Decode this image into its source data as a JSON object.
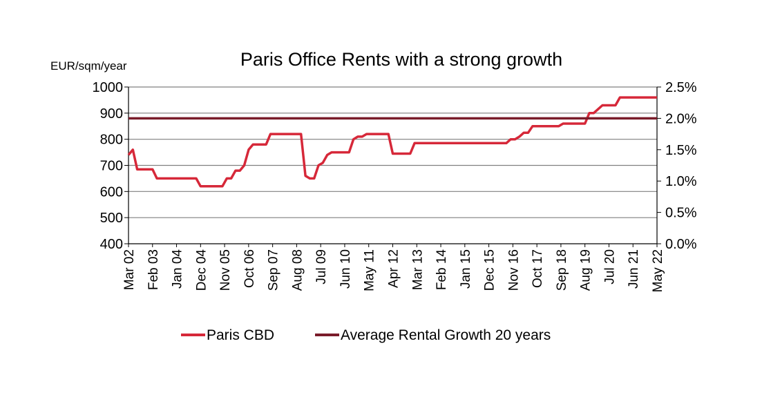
{
  "chart_data": {
    "type": "line",
    "title": "Paris Office Rents with a strong growth",
    "ylabel": "EUR/sqm/year",
    "ylim": [
      400,
      1000
    ],
    "yticks": [
      400,
      500,
      600,
      700,
      800,
      900,
      1000
    ],
    "y2lim": [
      0,
      2.5
    ],
    "y2ticks": [
      "0.0%",
      "0.5%",
      "1.0%",
      "1.5%",
      "2.0%",
      "2.5%"
    ],
    "x_tick_labels": [
      "Mar 02",
      "Feb 03",
      "Jan 04",
      "Dec 04",
      "Nov 05",
      "Oct 06",
      "Sep 07",
      "Aug 08",
      "Jul 09",
      "Jun 10",
      "May 11",
      "Apr 12",
      "Mar 13",
      "Feb 14",
      "Jan 15",
      "Dec 15",
      "Nov 16",
      "Oct 17",
      "Sep 18",
      "Aug 19",
      "Jul 20",
      "Jun 21",
      "May 22"
    ],
    "grid": "horizontal",
    "legend_position": "bottom",
    "colors": {
      "paris_cbd": "#d62839",
      "average": "#7a1c2a",
      "grid": "#7f7f7f"
    },
    "series": [
      {
        "name": "Paris CBD",
        "axis": "left",
        "x": [
          "Mar 02",
          "May 02",
          "Jul 02",
          "Aug 02",
          "Oct 02",
          "Dec 02",
          "Feb 03",
          "Apr 03",
          "Jun 03",
          "Aug 03",
          "Oct 03",
          "Dec 03",
          "Feb 04",
          "Apr 04",
          "Jun 04",
          "Aug 04",
          "Oct 04",
          "Dec 04",
          "Feb 05",
          "Apr 05",
          "Jun 05",
          "Aug 05",
          "Oct 05",
          "Dec 05",
          "Feb 06",
          "Apr 06",
          "Jun 06",
          "Aug 06",
          "Oct 06",
          "Dec 06",
          "Feb 07",
          "Apr 07",
          "Jun 07",
          "Aug 07",
          "Oct 07",
          "Dec 07",
          "Feb 08",
          "Apr 08",
          "Jun 08",
          "Aug 08",
          "Oct 08",
          "Dec 08",
          "Feb 09",
          "Apr 09",
          "Jun 09",
          "Aug 09",
          "Oct 09",
          "Dec 09",
          "Feb 10",
          "Apr 10",
          "Jun 10",
          "Aug 10",
          "Oct 10",
          "Dec 10",
          "Feb 11",
          "Apr 11",
          "Jun 11",
          "Aug 11",
          "Oct 11",
          "Dec 11",
          "Feb 12",
          "Apr 12",
          "Jun 12",
          "Aug 12",
          "Oct 12",
          "Dec 12",
          "Feb 13",
          "Apr 13",
          "Jun 13",
          "Aug 13",
          "Oct 13",
          "Dec 13",
          "Feb 14",
          "Apr 14",
          "Jun 14",
          "Aug 14",
          "Oct 14",
          "Dec 14",
          "Feb 15",
          "Apr 15",
          "Jun 15",
          "Aug 15",
          "Oct 15",
          "Dec 15",
          "Feb 16",
          "Apr 16",
          "Jun 16",
          "Aug 16",
          "Oct 16",
          "Dec 16",
          "Feb 17",
          "Apr 17",
          "Jun 17",
          "Aug 17",
          "Oct 17",
          "Dec 17",
          "Feb 18",
          "Apr 18",
          "Jun 18",
          "Aug 18",
          "Oct 18",
          "Dec 18",
          "Feb 19",
          "Apr 19",
          "Jun 19",
          "Aug 19",
          "Oct 19",
          "Dec 19",
          "Feb 20",
          "Apr 20",
          "Jun 20",
          "Aug 20",
          "Oct 20",
          "Dec 20",
          "Feb 21",
          "Apr 21",
          "Jun 21",
          "Aug 21",
          "Oct 21",
          "Dec 21",
          "Feb 22",
          "Apr 22",
          "May 22"
        ],
        "values": [
          740,
          760,
          685,
          685,
          685,
          685,
          685,
          650,
          650,
          650,
          650,
          650,
          650,
          650,
          650,
          650,
          650,
          620,
          620,
          620,
          620,
          620,
          620,
          650,
          650,
          680,
          680,
          700,
          760,
          780,
          780,
          780,
          780,
          820,
          820,
          820,
          820,
          820,
          820,
          820,
          820,
          660,
          650,
          650,
          700,
          710,
          740,
          750,
          750,
          750,
          750,
          750,
          800,
          810,
          810,
          820,
          820,
          820,
          820,
          820,
          820,
          745,
          745,
          745,
          745,
          745,
          785,
          785,
          785,
          785,
          785,
          785,
          785,
          785,
          785,
          785,
          785,
          785,
          785,
          785,
          785,
          785,
          785,
          785,
          785,
          785,
          785,
          785,
          800,
          800,
          810,
          825,
          825,
          850,
          850,
          850,
          850,
          850,
          850,
          850,
          860,
          860,
          860,
          860,
          860,
          860,
          900,
          900,
          915,
          930,
          930,
          930,
          930,
          960,
          960,
          960,
          960,
          960,
          960,
          960,
          960,
          960,
          960
        ]
      },
      {
        "name": "Average Rental Growth 20 years",
        "axis": "right",
        "values": [
          2.0
        ]
      }
    ]
  }
}
